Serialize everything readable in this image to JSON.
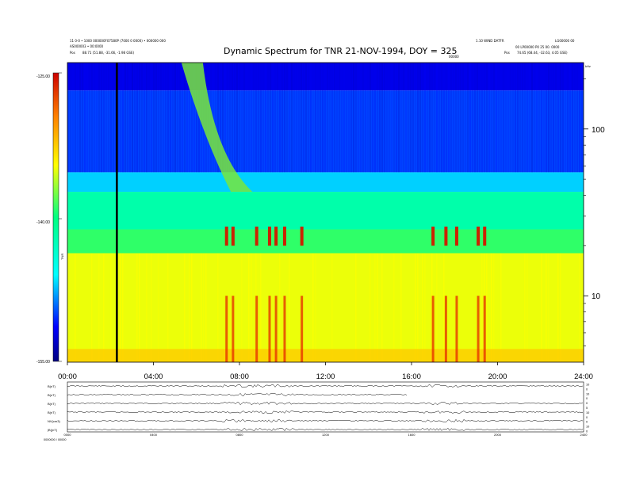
{
  "header": {
    "title": "Dynamic Spectrum for TNR 21-NOV-1994, DOY = 325",
    "left_line1": "11 0-0 • 1000 000000F07580P (7000 0 0000) • 000000 000",
    "left_line2": "AS000003 • 00:0000",
    "left_line3_label": "Pos",
    "left_line3_value": "88.71 (51.88, -31.66, -1.98 GSE)",
    "right_line1": "1.10 WIND DATFR",
    "right_line1b": "LG00000 00",
    "right_line2": "00 LP00000 P0 25 00. 0000",
    "right_line3_label": "Pos",
    "right_line3_value": "74.65 (68.44, -32.63, 4.05 GSE)",
    "center_small": "00000"
  },
  "colorbar": {
    "top_label": "-125.00",
    "mid_label": "-140.00",
    "bottom_label": "-155.00",
    "side_label": "TNR"
  },
  "chart_data": {
    "type": "heatmap",
    "title": "Dynamic Spectrum for TNR 21-NOV-1994, DOY = 325",
    "x_ticks": [
      "00:00",
      "04:00",
      "08:00",
      "12:00",
      "16:00",
      "20:00",
      "24:00"
    ],
    "x_range_hours": [
      0,
      24
    ],
    "y_scale": "log",
    "y_range": [
      4,
      250
    ],
    "y_ticks": [
      {
        "value": 100,
        "label": "100"
      },
      {
        "value": 10,
        "label": "10"
      }
    ],
    "y_unit": "kHz",
    "colorscale_range": [
      -155,
      -125
    ],
    "colorscale_ticks": [
      -125,
      -140,
      -155
    ],
    "marker_line_hour": 2.3,
    "band_levels_db": [
      {
        "freq_range": [
          170,
          250
        ],
        "db": -128
      },
      {
        "freq_range": [
          55,
          170
        ],
        "db": -130
      },
      {
        "freq_range": [
          42,
          55
        ],
        "db": -133
      },
      {
        "freq_range": [
          25,
          42
        ],
        "db": -138
      },
      {
        "freq_range": [
          18,
          25
        ],
        "db": -141
      },
      {
        "freq_range": [
          4,
          18
        ],
        "db": -145
      }
    ],
    "bursts_hours": [
      7.4,
      7.7,
      8.8,
      9.4,
      9.7,
      10.1,
      10.9,
      17.0,
      17.6,
      18.1,
      19.1,
      19.4
    ]
  },
  "bottom_panel": {
    "row_labels": [
      "B(nT)",
      "B(nT)",
      "B(nT)",
      "B(nT)",
      "NV(cm3)",
      "|B|(nT)"
    ],
    "right_ticks": [
      "10",
      "0",
      "10",
      "0",
      "0",
      "5",
      "10",
      "0",
      "0",
      "10",
      "0"
    ],
    "x_ticks": [
      "0000",
      "0400",
      "0800",
      "1200",
      "1600",
      "2000",
      "2400"
    ],
    "footer": "0000000 / 00000"
  }
}
